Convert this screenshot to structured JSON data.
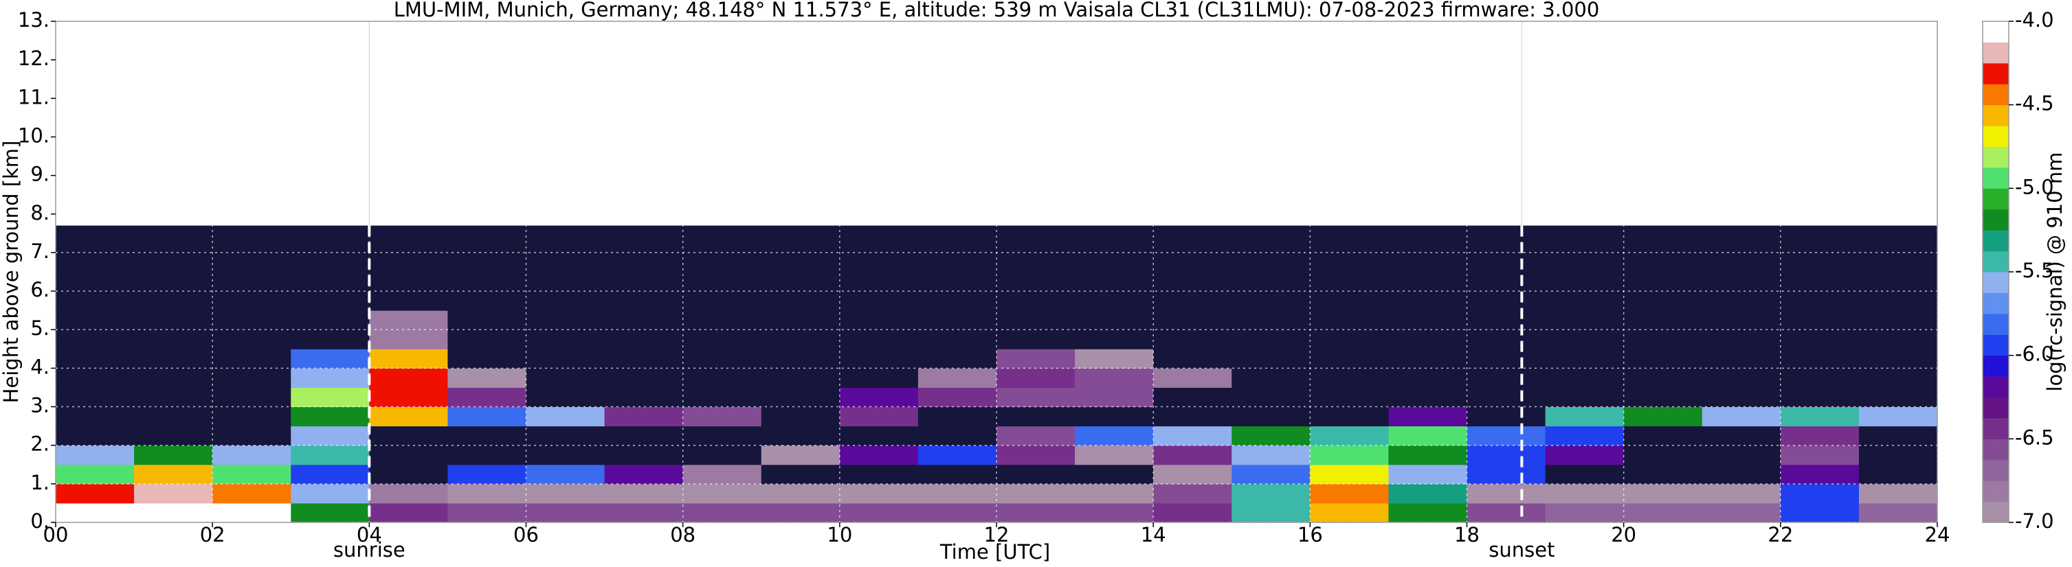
{
  "chart_data": {
    "type": "heatmap",
    "title": "LMU-MIM, Munich, Germany; 48.148° N 11.573° E, altitude: 539 m    Vaisala CL31 (CL31LMU): 07-08-2023    firmware: 3.000",
    "x_label": "Time [UTC]",
    "y_label": "Height above ground [km]",
    "colorbar_label": "log(rc-signal) @ 910 nm",
    "xlim": [
      0,
      24
    ],
    "ylim": [
      0,
      13
    ],
    "xticks": [
      {
        "value": 0,
        "label": "00"
      },
      {
        "value": 2,
        "label": "02"
      },
      {
        "value": 4,
        "label": "04"
      },
      {
        "value": 6,
        "label": "06"
      },
      {
        "value": 8,
        "label": "08"
      },
      10,
      12,
      14,
      16,
      18,
      20,
      22,
      24
    ],
    "yticks": [
      {
        "value": 0,
        "label": "0."
      },
      {
        "value": 1,
        "label": "1."
      },
      {
        "value": 2,
        "label": "2."
      },
      {
        "value": 3,
        "label": "3."
      },
      {
        "value": 4,
        "label": "4."
      },
      {
        "value": 5,
        "label": "5."
      },
      {
        "value": 6,
        "label": "6."
      },
      {
        "value": 7,
        "label": "7."
      },
      {
        "value": 8,
        "label": "8."
      },
      {
        "value": 9,
        "label": "9."
      },
      {
        "value": 10,
        "label": "10."
      },
      {
        "value": 11,
        "label": "11."
      },
      {
        "value": 12,
        "label": "12."
      },
      {
        "value": 13,
        "label": "13."
      }
    ],
    "clim": [
      -7,
      -4
    ],
    "cticks": [
      {
        "value": -4,
        "label": "-4.0"
      },
      {
        "value": -4.5,
        "label": "-4.5"
      },
      {
        "value": -5,
        "label": "-5.0"
      },
      {
        "value": -5.5,
        "label": "-5.5"
      },
      {
        "value": -6,
        "label": "-6.0"
      },
      {
        "value": -6.5,
        "label": "-6.5"
      },
      {
        "value": -7,
        "label": "-7.0"
      }
    ],
    "colors": [
      "#a890a8",
      "#9c7aa2",
      "#90649c",
      "#844c94",
      "#76308c",
      "#641484",
      "#5a0a9a",
      "#2010d8",
      "#2040f0",
      "#3a6cf0",
      "#6090f0",
      "#90b0f0",
      "#3cb8a8",
      "#14a080",
      "#108c20",
      "#28b028",
      "#50e070",
      "#a8f060",
      "#f0f000",
      "#f8b800",
      "#f87800",
      "#f01000",
      "#e8b8b8",
      "#ffffff"
    ],
    "under_color": "#16163c",
    "grid": true,
    "x": [
      0,
      1,
      2,
      3,
      4,
      5,
      6,
      7,
      8,
      9,
      10,
      11,
      12,
      13,
      14,
      15,
      16,
      17,
      18,
      19,
      20,
      21,
      22,
      23,
      24
    ],
    "y": [
      0,
      0.5,
      1,
      1.5,
      2,
      2.5,
      3,
      3.5,
      4,
      4.5,
      5.5,
      7.7
    ],
    "z": [
      [
        -4.0,
        -4.0,
        -4.1,
        -5.2,
        -6.5,
        -6.6,
        -6.6,
        -6.6,
        -6.6,
        -6.6,
        -6.6,
        -6.6,
        -6.6,
        -6.6,
        -6.5,
        -5.4,
        -4.6,
        -5.2,
        -6.6,
        -6.7,
        -6.7,
        -6.7,
        -6.0,
        -6.7
      ],
      [
        -4.3,
        -4.2,
        -4.4,
        -5.6,
        -6.8,
        -6.9,
        -6.9,
        -6.9,
        -6.9,
        -6.9,
        -6.9,
        -6.9,
        -6.9,
        -6.9,
        -6.6,
        -5.5,
        -4.5,
        -5.3,
        -6.9,
        -7.0,
        -7.0,
        -7.0,
        -6.0,
        -7.0
      ],
      [
        -4.9,
        -4.6,
        -5.0,
        -5.9,
        -7.2,
        -6.0,
        -5.8,
        -6.2,
        -6.8,
        -7.2,
        -7.2,
        -7.2,
        -7.2,
        -7.2,
        -7.0,
        -5.8,
        -4.7,
        -5.6,
        -6.0,
        -7.2,
        -7.2,
        -7.2,
        -6.2,
        -7.2
      ],
      [
        -5.6,
        -5.2,
        -5.6,
        -5.4,
        -7.3,
        -7.3,
        -7.3,
        -7.3,
        -7.3,
        -7.0,
        -6.2,
        -6.0,
        -6.4,
        -6.9,
        -6.4,
        -5.6,
        -5.0,
        -5.2,
        -5.9,
        -6.2,
        -7.3,
        -7.3,
        -6.6,
        -7.3
      ],
      [
        -7.3,
        -7.3,
        -7.3,
        -5.6,
        -7.3,
        -7.3,
        -7.3,
        -7.3,
        -7.3,
        -7.3,
        -7.3,
        -7.3,
        -6.6,
        -5.8,
        -5.6,
        -5.2,
        -5.4,
        -5.0,
        -5.8,
        -6.0,
        -7.3,
        -7.3,
        -6.4,
        -7.3
      ],
      [
        -7.3,
        -7.3,
        -7.3,
        -5.2,
        -4.6,
        -5.8,
        -5.6,
        -6.4,
        -6.6,
        -7.3,
        -6.4,
        -7.3,
        -7.3,
        -7.3,
        -7.3,
        -7.3,
        -7.3,
        -6.2,
        -7.3,
        -5.4,
        -5.2,
        -5.6,
        -5.4,
        -5.6
      ],
      [
        -7.3,
        -7.3,
        -7.3,
        -4.8,
        -4.3,
        -6.4,
        -7.3,
        -7.3,
        -7.3,
        -7.3,
        -6.2,
        -6.4,
        -6.6,
        -6.6,
        -7.3,
        -7.3,
        -7.3,
        -7.3,
        -7.3,
        -7.3,
        -7.3,
        -7.3,
        -7.3,
        -7.3
      ],
      [
        -7.3,
        -7.3,
        -7.3,
        -5.6,
        -4.3,
        -7.0,
        -7.3,
        -7.3,
        -7.3,
        -7.3,
        -7.3,
        -6.8,
        -6.4,
        -6.6,
        -6.8,
        -7.3,
        -7.3,
        -7.3,
        -7.3,
        -7.3,
        -7.3,
        -7.3,
        -7.3,
        -7.3
      ],
      [
        -7.3,
        -7.3,
        -7.3,
        -5.8,
        -4.6,
        -7.2,
        -7.3,
        -7.3,
        -7.3,
        -7.3,
        -7.3,
        -7.3,
        -6.6,
        -7.0,
        -7.3,
        -7.3,
        -7.3,
        -7.3,
        -7.3,
        -7.3,
        -7.3,
        -7.3,
        -7.3,
        -7.3
      ],
      [
        -7.4,
        -7.4,
        -7.4,
        -7.3,
        -6.8,
        -7.4,
        -7.4,
        -7.4,
        -7.4,
        -7.4,
        -7.4,
        -7.4,
        -7.4,
        -7.4,
        -7.4,
        -7.4,
        -7.4,
        -7.4,
        -7.4,
        -7.4,
        -7.4,
        -7.4,
        -7.4,
        -7.4
      ],
      [
        -7.5,
        -7.5,
        -7.5,
        -7.5,
        -7.5,
        -7.5,
        -7.5,
        -7.5,
        -7.5,
        -7.5,
        -7.5,
        -7.5,
        -7.5,
        -7.5,
        -7.5,
        -7.5,
        -7.5,
        -7.5,
        -7.5,
        -7.5,
        -7.5,
        -7.5,
        -7.5,
        -7.5
      ]
    ],
    "annotations": [
      {
        "x": 4,
        "label": "sunrise"
      },
      {
        "x": 18.7,
        "label": "sunset"
      }
    ]
  }
}
